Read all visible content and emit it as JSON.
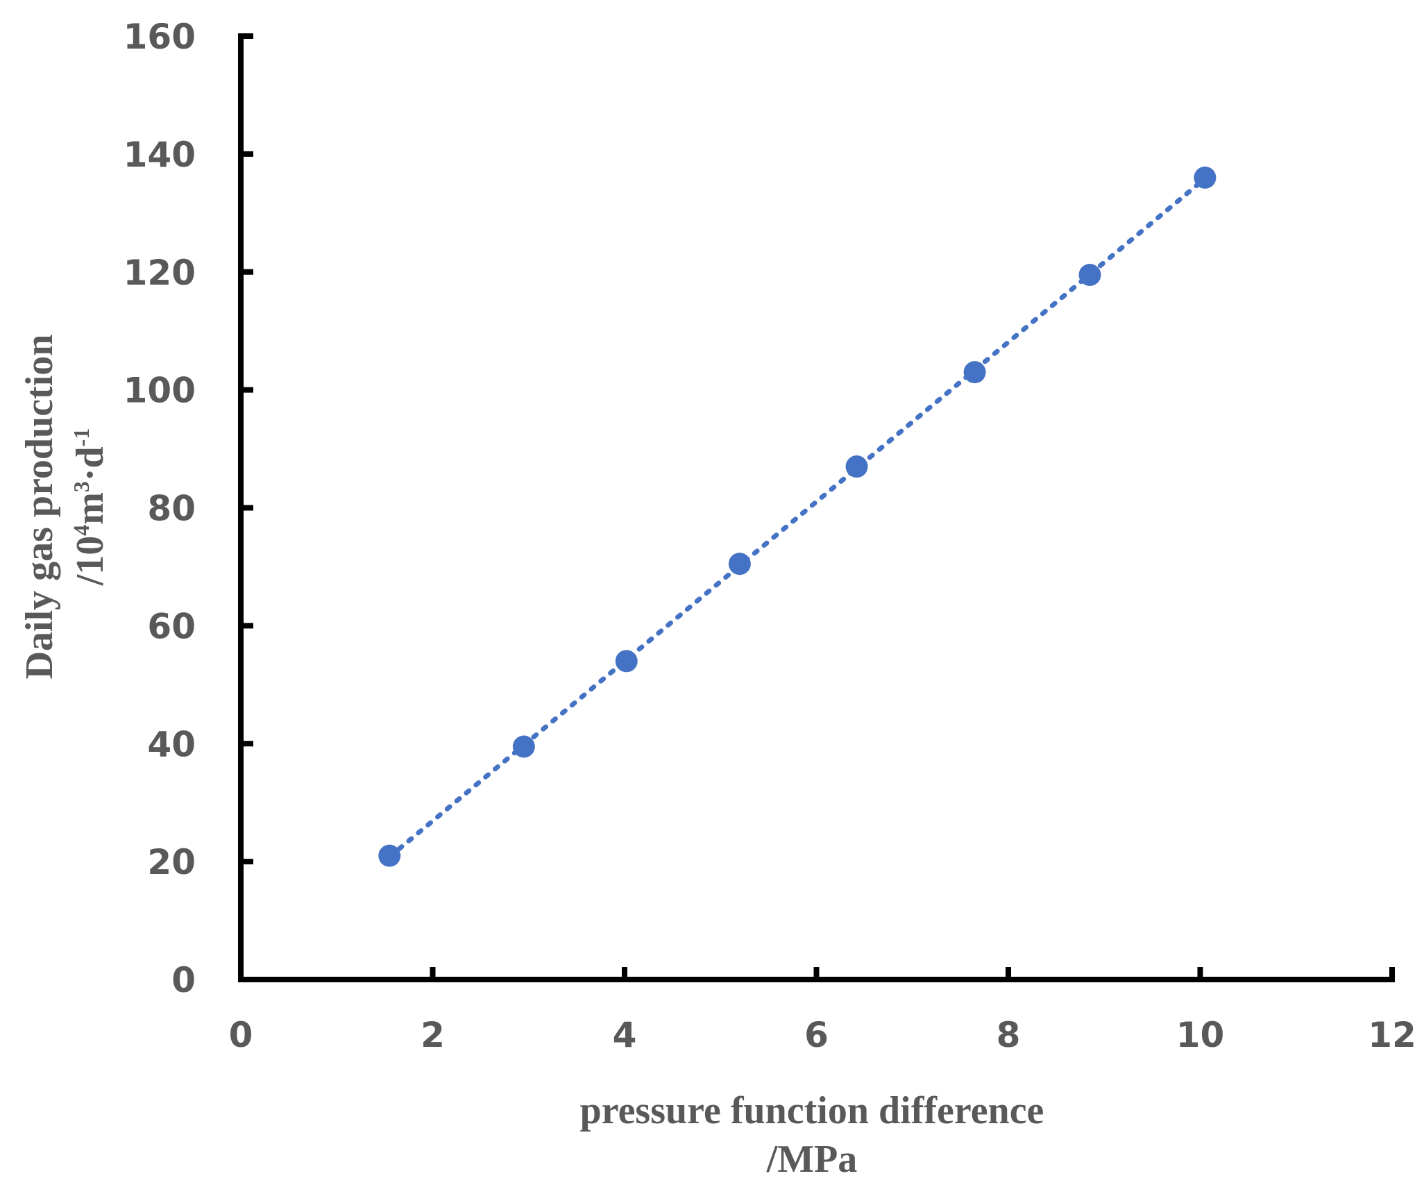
{
  "chart_data": {
    "type": "scatter",
    "title": "",
    "xlabel": "pressure function difference",
    "xlabel_unit": "/MPa",
    "ylabel": "Daily gas production",
    "ylabel_unit_parts": [
      "/10",
      "4",
      "m",
      "3",
      "·d",
      "-1"
    ],
    "xlim": [
      0,
      12
    ],
    "ylim": [
      0,
      160
    ],
    "x_ticks": [
      "0",
      "2",
      "4",
      "6",
      "8",
      "10",
      "12"
    ],
    "y_ticks": [
      "0",
      "20",
      "40",
      "60",
      "80",
      "100",
      "120",
      "140",
      "160"
    ],
    "x": [
      1.55,
      2.95,
      4.02,
      5.2,
      6.42,
      7.65,
      8.85,
      10.05
    ],
    "y": [
      21,
      39.5,
      54,
      70.5,
      87,
      103,
      119.5,
      136
    ],
    "trendline": {
      "style": "dotted",
      "type": "linear"
    },
    "grid": false,
    "legend": "none",
    "marker_color": "#4472C4"
  }
}
